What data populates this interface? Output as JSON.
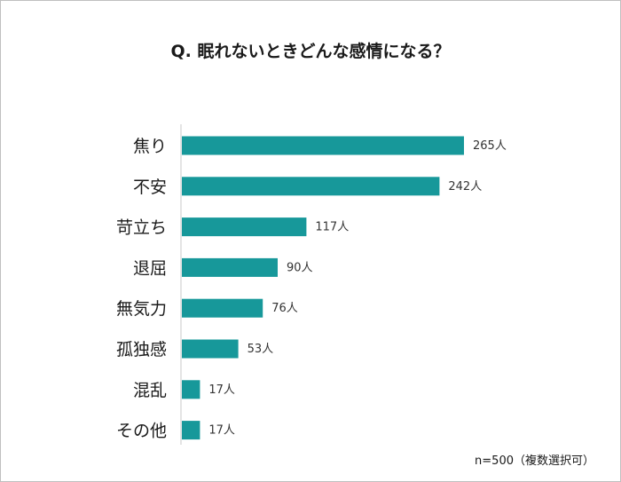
{
  "chart_data": {
    "type": "bar",
    "orientation": "horizontal",
    "title": "Q. 眠れないときどんな感情になる？",
    "categories": [
      "焦り",
      "不安",
      "苛立ち",
      "退屈",
      "無気力",
      "孤独感",
      "混乱",
      "その他"
    ],
    "values": [
      265,
      242,
      117,
      90,
      76,
      53,
      17,
      17
    ],
    "value_labels": [
      "265人",
      "242人",
      "117人",
      "90人",
      "76人",
      "53人",
      "17人",
      "17人"
    ],
    "xlim": [
      0,
      300
    ],
    "bar_color": "#17989a",
    "grid": false,
    "legend": "none",
    "xlabel": "",
    "ylabel": ""
  },
  "footnote": "n=500（複数選択可）"
}
